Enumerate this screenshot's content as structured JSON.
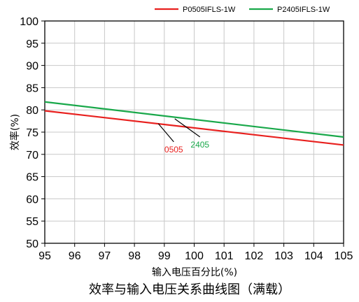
{
  "chart_data": {
    "type": "line",
    "title": "",
    "caption": "效率与输入电压关系曲线图（满载）",
    "xlabel": "输入电压百分比(%)",
    "ylabel": "效率(%)",
    "xlim": [
      95,
      105
    ],
    "ylim": [
      50,
      100
    ],
    "xticks": [
      "95",
      "96",
      "97",
      "98",
      "99",
      "100",
      "101",
      "102",
      "103",
      "104",
      "105"
    ],
    "yticks": [
      "50",
      "55",
      "60",
      "65",
      "70",
      "75",
      "80",
      "85",
      "90",
      "95",
      "100"
    ],
    "grid": true,
    "legend_position": "top-right",
    "series": [
      {
        "name": "P0505IFLS-1W",
        "color": "#e8201e",
        "x": [
          95,
          105
        ],
        "y": [
          79.8,
          72.1
        ]
      },
      {
        "name": "P2405IFLS-1W",
        "color": "#19a84a",
        "x": [
          95,
          105
        ],
        "y": [
          81.8,
          73.9
        ]
      }
    ],
    "annotations": [
      {
        "text": "0505",
        "color": "#e8201e",
        "points_to": [
          98.8,
          76.9
        ]
      },
      {
        "text": "2405",
        "color": "#19a84a",
        "points_to": [
          99.35,
          78.0
        ]
      }
    ]
  }
}
